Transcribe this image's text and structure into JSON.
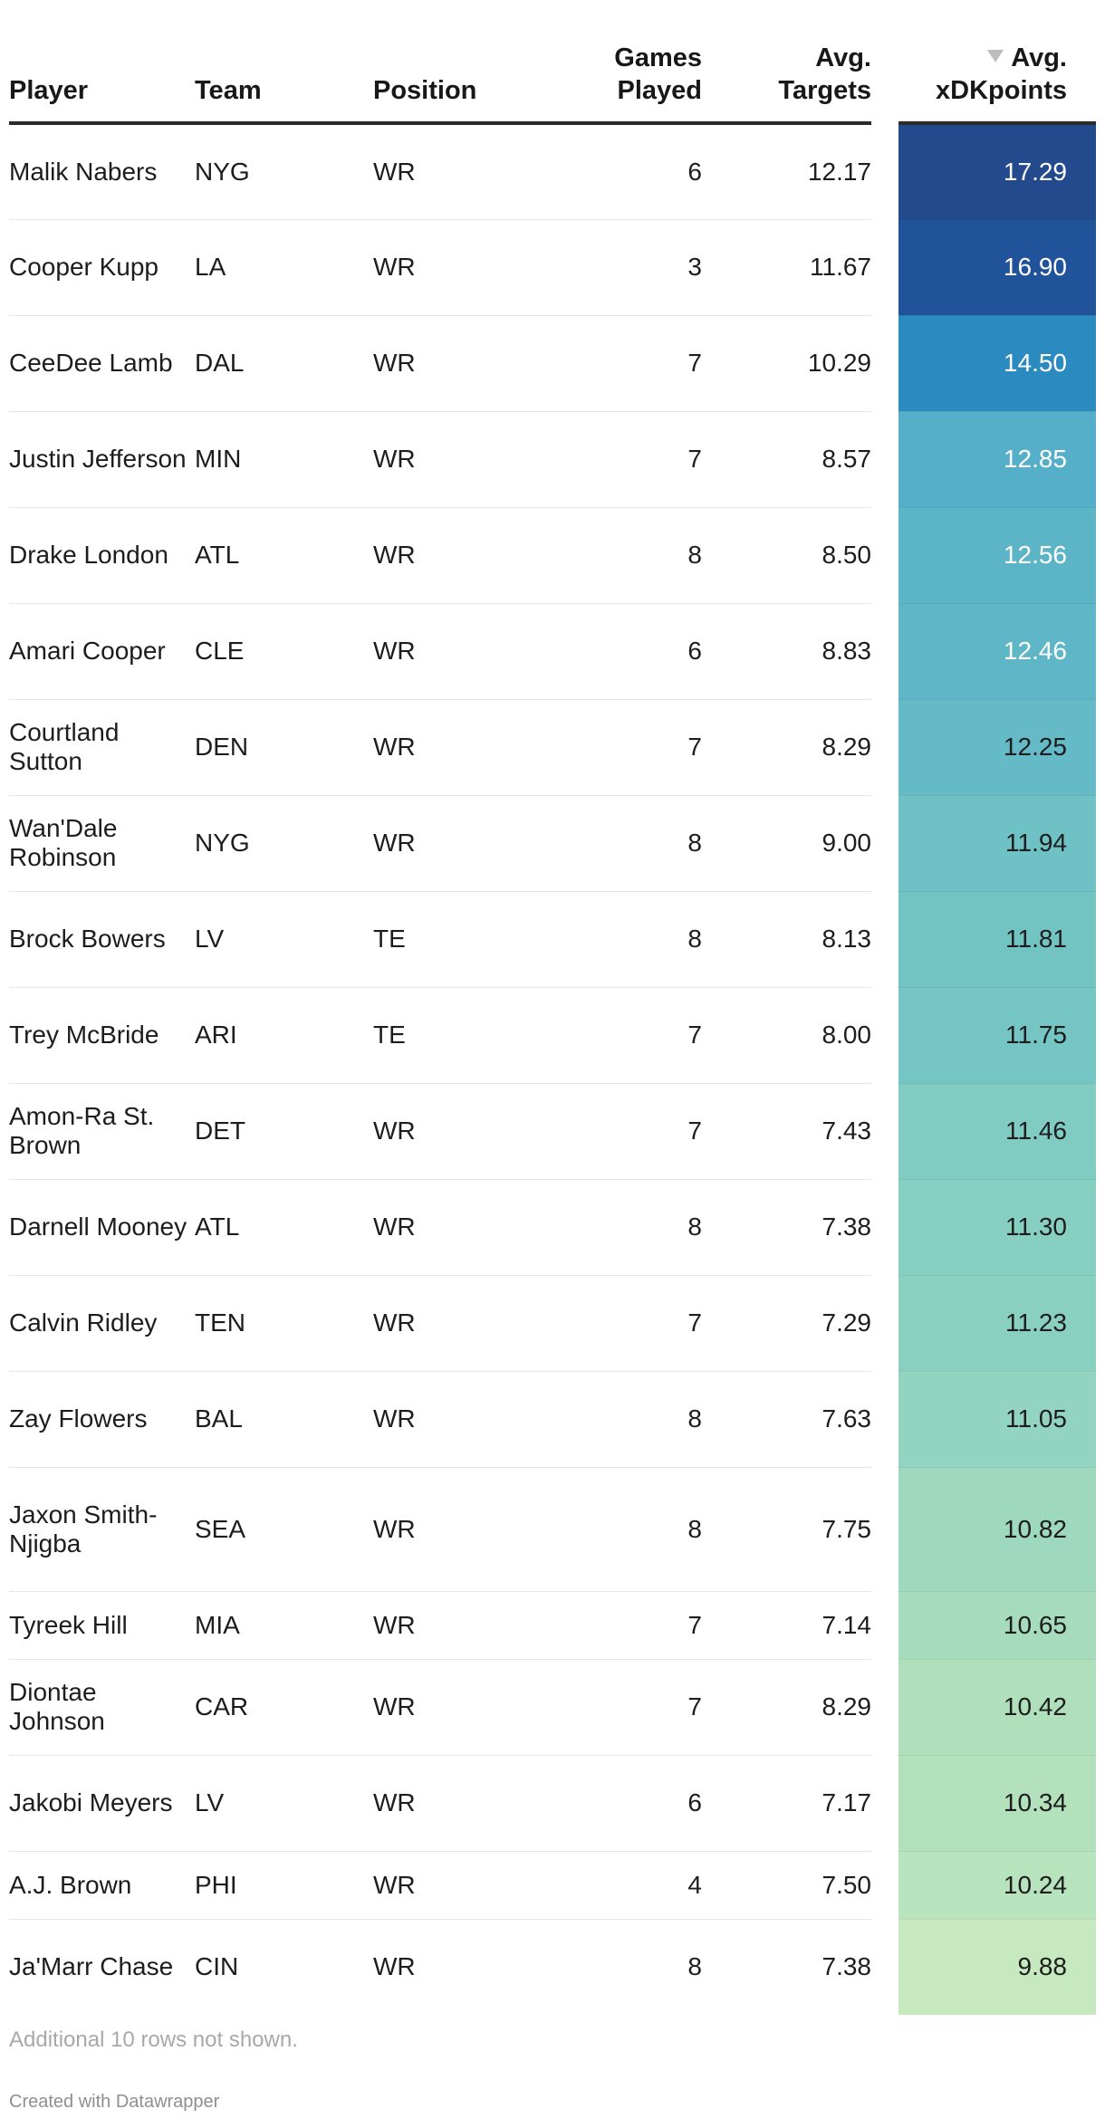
{
  "chart_data": {
    "type": "table",
    "columns": [
      "Player",
      "Team",
      "Position",
      "Games Played",
      "Avg. Targets",
      "Avg. xDKpoints"
    ],
    "sorted_by": "Avg. xDKpoints",
    "sort_direction": "descending",
    "heatmap_column": "Avg. xDKpoints",
    "heatmap_colors": [
      "#c7e9c0",
      "#7fcdbb",
      "#41a6c4",
      "#2c7fb8",
      "#253494"
    ],
    "rows": [
      {
        "player": "Malik Nabers",
        "team": "NYG",
        "position": "WR",
        "games": 6,
        "targets": "12.17",
        "xdk": "17.29"
      },
      {
        "player": "Cooper Kupp",
        "team": "LA",
        "position": "WR",
        "games": 3,
        "targets": "11.67",
        "xdk": "16.90"
      },
      {
        "player": "CeeDee Lamb",
        "team": "DAL",
        "position": "WR",
        "games": 7,
        "targets": "10.29",
        "xdk": "14.50"
      },
      {
        "player": "Justin Jefferson",
        "team": "MIN",
        "position": "WR",
        "games": 7,
        "targets": "8.57",
        "xdk": "12.85"
      },
      {
        "player": "Drake London",
        "team": "ATL",
        "position": "WR",
        "games": 8,
        "targets": "8.50",
        "xdk": "12.56"
      },
      {
        "player": "Amari Cooper",
        "team": "CLE",
        "position": "WR",
        "games": 6,
        "targets": "8.83",
        "xdk": "12.46"
      },
      {
        "player": "Courtland Sutton",
        "team": "DEN",
        "position": "WR",
        "games": 7,
        "targets": "8.29",
        "xdk": "12.25"
      },
      {
        "player": "Wan'Dale Robinson",
        "team": "NYG",
        "position": "WR",
        "games": 8,
        "targets": "9.00",
        "xdk": "11.94"
      },
      {
        "player": "Brock Bowers",
        "team": "LV",
        "position": "TE",
        "games": 8,
        "targets": "8.13",
        "xdk": "11.81"
      },
      {
        "player": "Trey McBride",
        "team": "ARI",
        "position": "TE",
        "games": 7,
        "targets": "8.00",
        "xdk": "11.75"
      },
      {
        "player": "Amon-Ra St. Brown",
        "team": "DET",
        "position": "WR",
        "games": 7,
        "targets": "7.43",
        "xdk": "11.46"
      },
      {
        "player": "Darnell Mooney",
        "team": "ATL",
        "position": "WR",
        "games": 8,
        "targets": "7.38",
        "xdk": "11.30"
      },
      {
        "player": "Calvin Ridley",
        "team": "TEN",
        "position": "WR",
        "games": 7,
        "targets": "7.29",
        "xdk": "11.23"
      },
      {
        "player": "Zay Flowers",
        "team": "BAL",
        "position": "WR",
        "games": 8,
        "targets": "7.63",
        "xdk": "11.05"
      },
      {
        "player": "Jaxon Smith-Njigba",
        "team": "SEA",
        "position": "WR",
        "games": 8,
        "targets": "7.75",
        "xdk": "10.82"
      },
      {
        "player": "Tyreek Hill",
        "team": "MIA",
        "position": "WR",
        "games": 7,
        "targets": "7.14",
        "xdk": "10.65"
      },
      {
        "player": "Diontae Johnson",
        "team": "CAR",
        "position": "WR",
        "games": 7,
        "targets": "8.29",
        "xdk": "10.42"
      },
      {
        "player": "Jakobi Meyers",
        "team": "LV",
        "position": "WR",
        "games": 6,
        "targets": "7.17",
        "xdk": "10.34"
      },
      {
        "player": "A.J. Brown",
        "team": "PHI",
        "position": "WR",
        "games": 4,
        "targets": "7.50",
        "xdk": "10.24"
      },
      {
        "player": "Ja'Marr Chase",
        "team": "CIN",
        "position": "WR",
        "games": 8,
        "targets": "7.38",
        "xdk": "9.88"
      }
    ]
  },
  "header": {
    "player": "Player",
    "team": "Team",
    "position": "Position",
    "games_l1": "Games",
    "games_l2": "Played",
    "targets_l1": "Avg.",
    "targets_l2": "Targets",
    "xdk_l1": "Avg.",
    "xdk_l2": "xDKpoints"
  },
  "footer": {
    "note": "Additional 10 rows not shown.",
    "credit": "Created with Datawrapper"
  }
}
